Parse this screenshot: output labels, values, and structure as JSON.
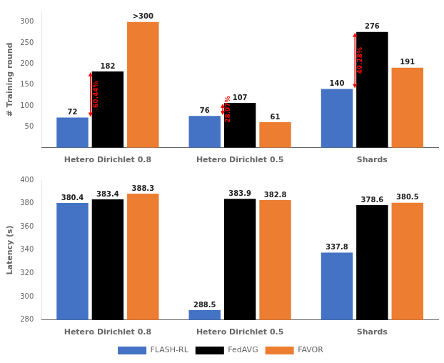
{
  "chart_data": [
    {
      "type": "bar",
      "ylabel": "# Training round",
      "categories": [
        "Hetero Dirichlet 0.8",
        "Hetero Dirichlet 0.5",
        "Shards"
      ],
      "series": [
        {
          "name": "FLASH-RL",
          "color": "#4472C4",
          "values": [
            72,
            76,
            140
          ]
        },
        {
          "name": "FedAVG",
          "color": "#000000",
          "values": [
            182,
            107,
            276
          ]
        },
        {
          "name": "FAVOR",
          "color": "#ED7D31",
          "values": [
            300,
            61,
            191
          ],
          "value_labels": [
            ">300",
            "61",
            "191"
          ]
        }
      ],
      "ylim": [
        0,
        325
      ],
      "yticks": [
        50,
        100,
        150,
        200,
        250,
        300
      ],
      "grid": false,
      "data_labels": true,
      "annotations": [
        {
          "text": "60.44%",
          "category": "Hetero Dirichlet 0.8",
          "from": 72,
          "to": 182,
          "color": "red"
        },
        {
          "text": "28.97%",
          "category": "Hetero Dirichlet 0.5",
          "from": 76,
          "to": 107,
          "color": "red"
        },
        {
          "text": "49.28%",
          "category": "Shards",
          "from": 140,
          "to": 276,
          "color": "red"
        }
      ]
    },
    {
      "type": "bar",
      "ylabel": "Latency (s)",
      "categories": [
        "Hetero Dirichlet 0.8",
        "Hetero Dirichlet 0.5",
        "Shards"
      ],
      "series": [
        {
          "name": "FLASH-RL",
          "color": "#4472C4",
          "values": [
            380.4,
            288.5,
            337.8
          ]
        },
        {
          "name": "FedAVG",
          "color": "#000000",
          "values": [
            383.4,
            383.9,
            378.6
          ]
        },
        {
          "name": "FAVOR",
          "color": "#ED7D31",
          "values": [
            388.3,
            382.8,
            380.5
          ]
        }
      ],
      "ylim": [
        280,
        400
      ],
      "yticks": [
        280,
        300,
        320,
        340,
        360,
        380,
        400
      ],
      "grid": false,
      "data_labels": true,
      "legend": "bottom"
    }
  ]
}
